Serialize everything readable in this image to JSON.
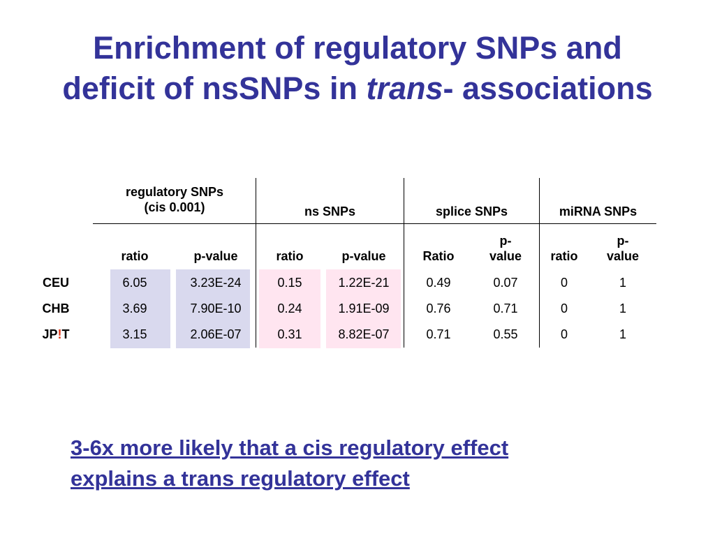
{
  "title": {
    "line1": "Enrichment of regulatory SNPs and",
    "line2_pre": "deficit of nsSNPs in ",
    "line2_italic": "trans",
    "line2_post": "- associations"
  },
  "table": {
    "groups": {
      "regulatory_line1": "regulatory SNPs",
      "regulatory_line2": "(cis 0.001)",
      "ns": "ns SNPs",
      "splice": "splice SNPs",
      "mirna": "miRNA SNPs"
    },
    "subheaders": {
      "reg_ratio": "ratio",
      "reg_pvalue": "p-value",
      "ns_ratio": "ratio",
      "ns_pvalue": "p-value",
      "splice_ratio": "Ratio",
      "splice_pvalue_line1": "p-",
      "splice_pvalue_line2": "value",
      "mirna_ratio": "ratio",
      "mirna_pvalue_line1": "p-",
      "mirna_pvalue_line2": "value"
    },
    "rows": [
      {
        "label": "CEU",
        "values": [
          "6.05",
          "3.23E-24",
          "0.15",
          "1.22E-21",
          "0.49",
          "0.07",
          "0",
          "1"
        ]
      },
      {
        "label": "CHB",
        "values": [
          "3.69",
          "7.90E-10",
          "0.24",
          "1.91E-09",
          "0.76",
          "0.71",
          "0",
          "1"
        ]
      },
      {
        "label_pre": "JP",
        "label_mark": "!",
        "label_post": "T",
        "values": [
          "3.15",
          "2.06E-07",
          "0.31",
          "8.82E-07",
          "0.71",
          "0.55",
          "0",
          "1"
        ]
      }
    ],
    "colors": {
      "regulatory_shade": "#d9d9ee",
      "ns_shade": "#ffe5f0"
    }
  },
  "footer": {
    "line1": "3-6x more likely that a cis regulatory effect",
    "line2": "explains a trans regulatory effect"
  },
  "colors": {
    "title": "#333399",
    "mark": "#e03010"
  }
}
